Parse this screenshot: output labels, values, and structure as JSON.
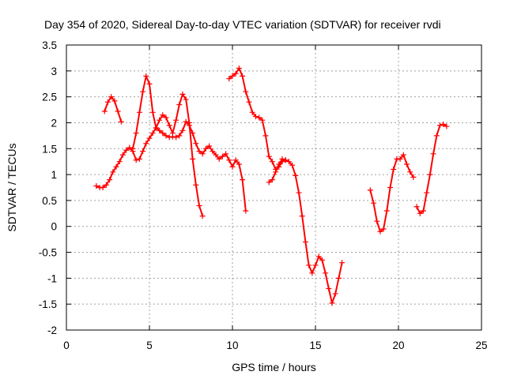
{
  "chart_data": {
    "type": "scatter",
    "title": "Day 354 of 2020, Sidereal Day-to-day VTEC variation (SDTVAR) for receiver rvdi",
    "xlabel": "GPS time / hours",
    "ylabel": "SDTVAR / TECUs",
    "xlim": [
      0,
      25
    ],
    "ylim": [
      -2,
      3.5
    ],
    "xticks": [
      "0",
      "5",
      "10",
      "15",
      "20",
      "25"
    ],
    "yticks": [
      "-2",
      "-1.5",
      "-1",
      "-0.5",
      "0",
      "0.5",
      "1",
      "1.5",
      "2",
      "2.5",
      "3",
      "3.5"
    ],
    "grid": true,
    "marker": "+",
    "color": "#ff0000",
    "series": [
      {
        "x": [
          1.8,
          2.0,
          2.2,
          2.4,
          2.6,
          2.8,
          3.0,
          3.2,
          3.4,
          3.6,
          3.8,
          4.0,
          4.2,
          4.4,
          4.6,
          4.8,
          5.0,
          5.2,
          5.4,
          5.6,
          5.8,
          6.0,
          6.2,
          6.4,
          6.6,
          6.8,
          7.0,
          7.2,
          7.4,
          7.6,
          7.8,
          8.0,
          8.2,
          8.4,
          8.6,
          8.8,
          9.0,
          9.2,
          9.4,
          9.6,
          9.8,
          10.0,
          10.2,
          10.4,
          10.6,
          10.8
        ],
        "y": [
          0.78,
          0.75,
          0.75,
          0.8,
          0.9,
          1.05,
          1.15,
          1.25,
          1.38,
          1.47,
          1.52,
          1.45,
          1.28,
          1.3,
          1.45,
          1.6,
          1.7,
          1.8,
          1.9,
          1.85,
          1.8,
          1.75,
          1.72,
          1.73,
          1.72,
          1.75,
          1.85,
          2.02,
          1.95,
          1.8,
          1.6,
          1.45,
          1.4,
          1.5,
          1.55,
          1.45,
          1.38,
          1.3,
          1.35,
          1.4,
          1.28,
          1.15,
          1.28,
          1.2,
          0.9,
          0.3
        ]
      },
      {
        "x": [
          2.3,
          2.5,
          2.7,
          2.9,
          3.1,
          3.3
        ],
        "y": [
          2.22,
          2.4,
          2.5,
          2.42,
          2.22,
          2.02
        ]
      },
      {
        "x": [
          4.0,
          4.2,
          4.4,
          4.6,
          4.8,
          5.0,
          5.2,
          5.4,
          5.6,
          5.8,
          6.0,
          6.2,
          6.4,
          6.6,
          6.8,
          7.0,
          7.2,
          7.4,
          7.6,
          7.8,
          8.0,
          8.2
        ],
        "y": [
          1.5,
          1.8,
          2.2,
          2.6,
          2.9,
          2.75,
          2.2,
          1.9,
          2.05,
          2.15,
          2.1,
          1.95,
          1.8,
          2.05,
          2.35,
          2.55,
          2.45,
          2.0,
          1.3,
          0.8,
          0.4,
          0.2
        ]
      },
      {
        "x": [
          9.8,
          10.0,
          10.2,
          10.4,
          10.6,
          10.8,
          11.0,
          11.2,
          11.4,
          11.6,
          11.8,
          12.0,
          12.2,
          12.4,
          12.6,
          12.8,
          13.0,
          13.2,
          13.4,
          13.6,
          13.8,
          14.0,
          14.2,
          14.4,
          14.6,
          14.8,
          15.0,
          15.2,
          15.4,
          15.6,
          15.8,
          16.0,
          16.2,
          16.4,
          16.6
        ],
        "y": [
          2.85,
          2.9,
          2.95,
          3.05,
          2.9,
          2.6,
          2.4,
          2.2,
          2.12,
          2.1,
          2.05,
          1.75,
          1.35,
          1.25,
          1.1,
          1.15,
          1.25,
          1.28,
          1.25,
          1.18,
          0.98,
          0.65,
          0.2,
          -0.3,
          -0.75,
          -0.9,
          -0.75,
          -0.58,
          -0.65,
          -0.9,
          -1.2,
          -1.48,
          -1.3,
          -1.0,
          -0.7
        ]
      },
      {
        "x": [
          12.2,
          12.4,
          12.6,
          12.8,
          13.0,
          13.2
        ],
        "y": [
          0.85,
          0.9,
          1.05,
          1.2,
          1.3,
          1.28
        ]
      },
      {
        "x": [
          18.3,
          18.5,
          18.7,
          18.9,
          19.1,
          19.3,
          19.5,
          19.7,
          19.9,
          20.1,
          20.3,
          20.5,
          20.7,
          20.9
        ],
        "y": [
          0.7,
          0.45,
          0.1,
          -0.1,
          -0.05,
          0.3,
          0.75,
          1.1,
          1.3,
          1.3,
          1.38,
          1.2,
          1.05,
          0.95
        ]
      },
      {
        "x": [
          21.1,
          21.3,
          21.5,
          21.7,
          21.9,
          22.1,
          22.3,
          22.5,
          22.7,
          22.9
        ],
        "y": [
          0.38,
          0.25,
          0.3,
          0.65,
          1.0,
          1.4,
          1.75,
          1.95,
          1.97,
          1.93
        ]
      }
    ]
  }
}
